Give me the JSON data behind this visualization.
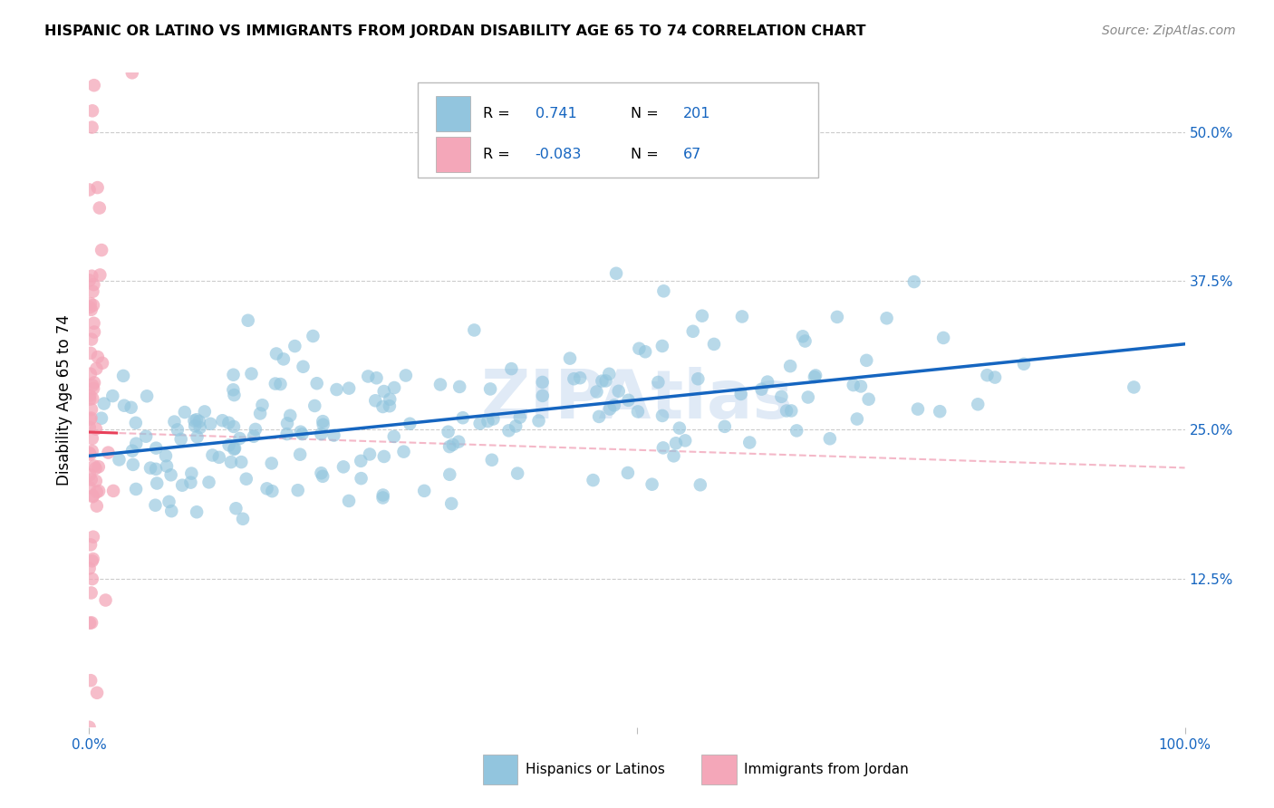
{
  "title": "HISPANIC OR LATINO VS IMMIGRANTS FROM JORDAN DISABILITY AGE 65 TO 74 CORRELATION CHART",
  "source": "Source: ZipAtlas.com",
  "ylabel": "Disability Age 65 to 74",
  "blue_R": 0.741,
  "blue_N": 201,
  "pink_R": -0.083,
  "pink_N": 67,
  "blue_color": "#92c5de",
  "blue_line_color": "#1565c0",
  "pink_color": "#f4a7b9",
  "pink_line_color": "#e8405a",
  "pink_dash_color": "#f4b8c8",
  "watermark": "ZIPAtlas",
  "legend_label_blue": "Hispanics or Latinos",
  "legend_label_pink": "Immigrants from Jordan",
  "xmin": 0.0,
  "xmax": 1.0,
  "ymin": 0.0,
  "ymax": 0.55,
  "yticks": [
    0.125,
    0.25,
    0.375,
    0.5
  ],
  "ytick_labels": [
    "12.5%",
    "25.0%",
    "37.5%",
    "50.0%"
  ],
  "blue_line_x0": 0.0,
  "blue_line_y0": 0.228,
  "blue_line_x1": 1.0,
  "blue_line_y1": 0.322,
  "pink_line_x0": 0.0,
  "pink_line_y0": 0.248,
  "pink_line_x1": 1.0,
  "pink_line_y1": 0.218,
  "blue_seed": 99,
  "pink_seed": 15,
  "figsize": [
    14.06,
    8.92
  ],
  "dpi": 100
}
